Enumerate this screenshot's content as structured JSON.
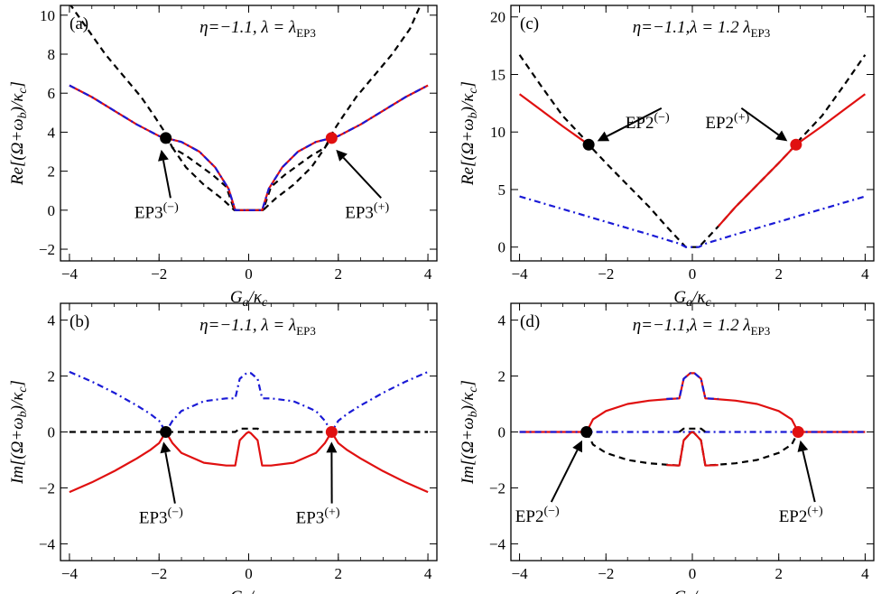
{
  "chart_data": [
    {
      "panel": "a",
      "type": "line",
      "panel_label": "(a)",
      "annotation": "η=−1.1, λ = λEP3",
      "xlabel": "Ga/κc",
      "ylabel": "Re[(Ω+ωb)/κc]",
      "xlim": [
        -4.2,
        4.2
      ],
      "ylim": [
        -2.6,
        10.5
      ],
      "xticks": [
        "−4",
        "−2",
        "0",
        "2",
        "4"
      ],
      "xtick_values": [
        -4,
        -2,
        0,
        2,
        4
      ],
      "yticks": [
        "−2",
        "0",
        "2",
        "4",
        "6",
        "8",
        "10"
      ],
      "ytick_values": [
        -2,
        0,
        2,
        4,
        6,
        8,
        10
      ],
      "series": [
        {
          "style": "black-dashed",
          "color": "#000000",
          "x": [
            -4,
            -3.6,
            -3.2,
            -2.8,
            -2.4,
            -2.1,
            -1.9,
            -1.7,
            -1.4,
            -1.1,
            -0.8,
            -0.5,
            -0.32,
            0,
            0.32,
            0.5,
            0.8,
            1.1,
            1.4,
            1.7,
            1.9,
            2.1,
            2.4,
            2.8,
            3.2,
            3.6,
            3.85
          ],
          "y": [
            10.6,
            9.3,
            8.0,
            6.9,
            5.8,
            4.8,
            4.1,
            3.2,
            2.8,
            2.3,
            1.8,
            1.2,
            0,
            0,
            0,
            1.2,
            1.8,
            2.3,
            2.8,
            3.2,
            4.1,
            4.8,
            5.8,
            6.9,
            8.0,
            9.3,
            10.6
          ]
        },
        {
          "style": "black-dashed",
          "color": "#000000",
          "x": [
            -1.85,
            -1.4,
            -1.0,
            -0.6,
            -0.32,
            0,
            0.32,
            0.6,
            1.0,
            1.4,
            1.85
          ],
          "y": [
            3.7,
            2.2,
            1.3,
            0.6,
            0,
            0,
            0,
            0.6,
            1.3,
            2.2,
            3.7
          ]
        },
        {
          "style": "red-solid",
          "color": "#e01010",
          "x": [
            -4,
            -3.5,
            -3.0,
            -2.5,
            -2.0,
            -1.85,
            -1.5,
            -1.1,
            -0.75,
            -0.45,
            -0.3,
            0,
            0.3,
            0.45,
            0.75,
            1.1,
            1.5,
            1.85,
            2.0,
            2.5,
            3.0,
            3.5,
            4
          ],
          "y": [
            6.4,
            5.8,
            5.1,
            4.4,
            3.8,
            3.7,
            3.5,
            3.0,
            2.2,
            1.1,
            0,
            0,
            0,
            1.1,
            2.2,
            3.0,
            3.5,
            3.7,
            3.8,
            4.4,
            5.1,
            5.8,
            6.4
          ]
        },
        {
          "style": "blue-dashdot",
          "color": "#1a1ad6",
          "x": [
            -4,
            -3.5,
            -3.0,
            -2.5,
            -2.0,
            -1.85,
            -1.5,
            -1.1,
            -0.75,
            -0.45,
            -0.3,
            0,
            0.3,
            0.45,
            0.75,
            1.1,
            1.5,
            1.85,
            2.0,
            2.5,
            3.0,
            3.5,
            4
          ],
          "y": [
            6.4,
            5.8,
            5.1,
            4.4,
            3.8,
            3.7,
            3.5,
            3.0,
            2.2,
            1.1,
            0,
            0,
            0,
            1.1,
            2.2,
            3.0,
            3.5,
            3.7,
            3.8,
            4.4,
            5.1,
            5.8,
            6.4
          ]
        }
      ],
      "points": [
        {
          "label": "EP3(−)",
          "x": -1.85,
          "y": 3.7,
          "color": "#000000",
          "text_x": -2.55,
          "text_y": -0.3,
          "tip_x": -1.95,
          "tip_y": 3.1
        },
        {
          "label": "EP3(+)",
          "x": 1.85,
          "y": 3.7,
          "color": "#e01010",
          "text_x": 2.15,
          "text_y": -0.3,
          "tip_x": 1.95,
          "tip_y": 3.1
        }
      ]
    },
    {
      "panel": "c",
      "type": "line",
      "panel_label": "(c)",
      "annotation": "η=−1.1,λ = 1.2 λEP3",
      "xlabel": "Ga/κc",
      "ylabel": "Re[(Ω+ωb)/κc]",
      "xlim": [
        -4.2,
        4.2
      ],
      "ylim": [
        -1.2,
        21
      ],
      "xticks": [
        "−4",
        "−2",
        "0",
        "2",
        "4"
      ],
      "xtick_values": [
        -4,
        -2,
        0,
        2,
        4
      ],
      "yticks": [
        "0",
        "5",
        "10",
        "15",
        "20"
      ],
      "ytick_values": [
        0,
        5,
        10,
        15,
        20
      ],
      "series": [
        {
          "style": "black-dashed",
          "color": "#000000",
          "x": [
            -4,
            -3.5,
            -3.0,
            -2.5,
            -2.4,
            -2.0,
            -1.5,
            -1.0,
            -0.6,
            -0.3,
            -0.15,
            0,
            0.15,
            0.3,
            0.6,
            1.0,
            1.5,
            2.0,
            2.4,
            2.5,
            3.0,
            3.5,
            4
          ],
          "y": [
            16.7,
            14.0,
            11.4,
            9.4,
            8.9,
            7.3,
            5.4,
            3.5,
            1.8,
            0.6,
            0,
            0,
            0,
            0.6,
            1.8,
            3.5,
            5.4,
            7.3,
            8.9,
            9.4,
            11.4,
            14.0,
            16.7
          ]
        },
        {
          "style": "red-solid",
          "color": "#e01010",
          "x": [
            -4,
            -3.5,
            -3.0,
            -2.4
          ],
          "y": [
            13.3,
            11.9,
            10.5,
            8.9
          ]
        },
        {
          "style": "red-solid",
          "color": "#e01010",
          "x": [
            0.6,
            1.0,
            1.5,
            2.0,
            2.4,
            3.0,
            3.5,
            4
          ],
          "y": [
            1.8,
            3.5,
            5.4,
            7.3,
            8.9,
            10.5,
            11.9,
            13.3
          ]
        },
        {
          "style": "blue-dashdot",
          "color": "#1a1ad6",
          "x": [
            -4,
            -3.0,
            -2.0,
            -1.0,
            -0.3,
            -0.15,
            0,
            0.15,
            0.3,
            1.0,
            2.0,
            3.0,
            4
          ],
          "y": [
            4.4,
            3.3,
            2.2,
            1.1,
            0.3,
            0,
            0,
            0,
            0.3,
            1.1,
            2.2,
            3.3,
            4.4
          ]
        }
      ],
      "points": [
        {
          "label": "EP2(−)",
          "x": -2.4,
          "y": 8.9,
          "color": "#000000",
          "text_x": -1.55,
          "text_y": 10.5,
          "tip_x": -2.2,
          "tip_y": 9.2
        },
        {
          "label": "EP2(+)",
          "x": 2.4,
          "y": 8.9,
          "color": "#e01010",
          "text_x": 0.3,
          "text_y": 10.5,
          "tip_x": 2.2,
          "tip_y": 9.2
        }
      ]
    },
    {
      "panel": "b",
      "type": "line",
      "panel_label": "(b)",
      "annotation": "η=−1.1, λ = λEP3",
      "xlabel": "Ga/κc",
      "ylabel": "Im[(Ω+ωb)/κc]",
      "xlim": [
        -4.2,
        4.2
      ],
      "ylim": [
        -4.6,
        4.6
      ],
      "xticks": [
        "−4",
        "−2",
        "0",
        "2",
        "4"
      ],
      "xtick_values": [
        -4,
        -2,
        0,
        2,
        4
      ],
      "yticks": [
        "−4",
        "−2",
        "0",
        "2",
        "4"
      ],
      "ytick_values": [
        -4,
        -2,
        0,
        2,
        4
      ],
      "series": [
        {
          "style": "black-dashed",
          "color": "#000000",
          "x": [
            -4,
            -0.3,
            -0.2,
            0,
            0.2,
            0.3,
            4
          ],
          "y": [
            0,
            0,
            0.12,
            0.12,
            0.12,
            0,
            0
          ]
        },
        {
          "style": "blue-dashdot",
          "color": "#1a1ad6",
          "x": [
            -4,
            -3.5,
            -3.0,
            -2.5,
            -2.2,
            -2.0,
            -1.85,
            -1.7,
            -1.5,
            -1.0,
            -0.5,
            -0.3,
            -0.2,
            -0.05,
            0,
            0.05,
            0.2,
            0.3,
            0.5,
            1.0,
            1.5,
            1.7,
            1.85,
            2.0,
            2.2,
            2.5,
            3.0,
            3.5,
            4
          ],
          "y": [
            2.15,
            1.8,
            1.4,
            0.95,
            0.65,
            0.4,
            0,
            0.4,
            0.75,
            1.1,
            1.2,
            1.2,
            1.9,
            2.1,
            2.1,
            2.1,
            1.9,
            1.2,
            1.2,
            1.1,
            0.75,
            0.4,
            0,
            0.4,
            0.65,
            0.95,
            1.4,
            1.8,
            2.15
          ]
        },
        {
          "style": "red-solid",
          "color": "#e01010",
          "x": [
            -4,
            -3.5,
            -3.0,
            -2.5,
            -2.2,
            -2.0,
            -1.85,
            -1.7,
            -1.5,
            -1.0,
            -0.5,
            -0.3,
            -0.2,
            -0.05,
            0,
            0.05,
            0.2,
            0.3,
            0.5,
            1.0,
            1.5,
            1.7,
            1.85,
            2.0,
            2.2,
            2.5,
            3.0,
            3.5,
            4
          ],
          "y": [
            -2.15,
            -1.8,
            -1.4,
            -0.95,
            -0.65,
            -0.4,
            0,
            -0.4,
            -0.75,
            -1.1,
            -1.2,
            -1.2,
            -0.3,
            -0.05,
            0,
            -0.05,
            -0.3,
            -1.2,
            -1.2,
            -1.1,
            -0.75,
            -0.4,
            0,
            -0.4,
            -0.65,
            -0.95,
            -1.4,
            -1.8,
            -2.15
          ]
        }
      ],
      "points": [
        {
          "label": "EP3(−)",
          "x": -1.85,
          "y": 0,
          "color": "#000000",
          "text_x": -2.45,
          "text_y": -3.2,
          "tip_x": -1.9,
          "tip_y": -0.35
        },
        {
          "label": "EP3(+)",
          "x": 1.85,
          "y": 0,
          "color": "#e01010",
          "text_x": 1.05,
          "text_y": -3.2,
          "tip_x": 1.85,
          "tip_y": -0.35
        }
      ]
    },
    {
      "panel": "d",
      "type": "line",
      "panel_label": "(d)",
      "annotation": "η=−1.1,λ = 1.2 λEP3",
      "xlabel": "Ga/κc",
      "ylabel": "Im[(Ω+ωb)/κc]",
      "xlim": [
        -4.2,
        4.2
      ],
      "ylim": [
        -4.6,
        4.6
      ],
      "xticks": [
        "−4",
        "−2",
        "0",
        "2",
        "4"
      ],
      "xtick_values": [
        -4,
        -2,
        0,
        2,
        4
      ],
      "yticks": [
        "−4",
        "−2",
        "0",
        "2",
        "4"
      ],
      "ytick_values": [
        -4,
        -2,
        0,
        2,
        4
      ],
      "series": [
        {
          "style": "red-solid",
          "color": "#e01010",
          "x": [
            -4,
            -2.45
          ],
          "y": [
            0,
            0
          ]
        },
        {
          "style": "red-solid",
          "color": "#e01010",
          "x": [
            2.45,
            4
          ],
          "y": [
            0,
            0
          ]
        },
        {
          "style": "red-solid",
          "color": "#e01010",
          "x": [
            -2.45,
            -2.3,
            -2.0,
            -1.5,
            -1.0,
            -0.5,
            -0.3,
            -0.2,
            -0.05,
            0,
            0.05,
            0.2,
            0.3,
            0.5,
            1.0,
            1.5,
            2.0,
            2.3,
            2.45
          ],
          "y": [
            0,
            0.45,
            0.75,
            1.0,
            1.12,
            1.18,
            1.2,
            1.9,
            2.1,
            2.1,
            2.1,
            1.9,
            1.2,
            1.18,
            1.12,
            1.0,
            0.75,
            0.45,
            0
          ]
        },
        {
          "style": "blue-dashdot",
          "color": "#1a1ad6",
          "x": [
            -4,
            -2.45,
            2.45,
            4
          ],
          "y": [
            0,
            0,
            0,
            0
          ]
        },
        {
          "style": "blue-dashdot",
          "color": "#1a1ad6",
          "x": [
            -0.6,
            -0.3,
            -0.2,
            -0.05,
            0,
            0.05,
            0.2,
            0.3,
            0.6
          ],
          "y": [
            1.18,
            1.2,
            1.9,
            2.1,
            2.1,
            2.1,
            1.9,
            1.2,
            1.18
          ]
        },
        {
          "style": "black-dashed",
          "color": "#000000",
          "x": [
            -2.45,
            -2.3,
            -2.0,
            -1.5,
            -1.0,
            -0.5,
            -0.3,
            -0.2,
            -0.05,
            0,
            0.05,
            0.2,
            0.3,
            0.5,
            1.0,
            1.5,
            2.0,
            2.3,
            2.45
          ],
          "y": [
            0,
            -0.45,
            -0.75,
            -1.0,
            -1.12,
            -1.18,
            -1.2,
            -0.3,
            -0.05,
            0,
            -0.05,
            -0.3,
            -1.2,
            -1.18,
            -1.12,
            -1.0,
            -0.75,
            -0.45,
            0
          ]
        },
        {
          "style": "black-dashed",
          "color": "#000000",
          "x": [
            -0.3,
            -0.2,
            0,
            0.2,
            0.3
          ],
          "y": [
            0,
            0.12,
            0.12,
            0.12,
            0
          ]
        },
        {
          "style": "red-solid",
          "color": "#e01010",
          "x": [
            -0.6,
            -0.3,
            -0.2,
            -0.05,
            0,
            0.05,
            0.2,
            0.3,
            0.6
          ],
          "y": [
            -1.18,
            -1.2,
            -0.3,
            -0.05,
            0,
            -0.05,
            -0.3,
            -1.2,
            -1.18
          ]
        }
      ],
      "points": [
        {
          "label": "EP2(−)",
          "x": -2.45,
          "y": 0,
          "color": "#000000",
          "text_x": -4.1,
          "text_y": -3.15,
          "tip_x": -2.55,
          "tip_y": -0.3
        },
        {
          "label": "EP2(+)",
          "x": 2.45,
          "y": 0,
          "color": "#e01010",
          "text_x": 2.0,
          "text_y": -3.15,
          "tip_x": 2.5,
          "tip_y": -0.3
        }
      ]
    }
  ]
}
